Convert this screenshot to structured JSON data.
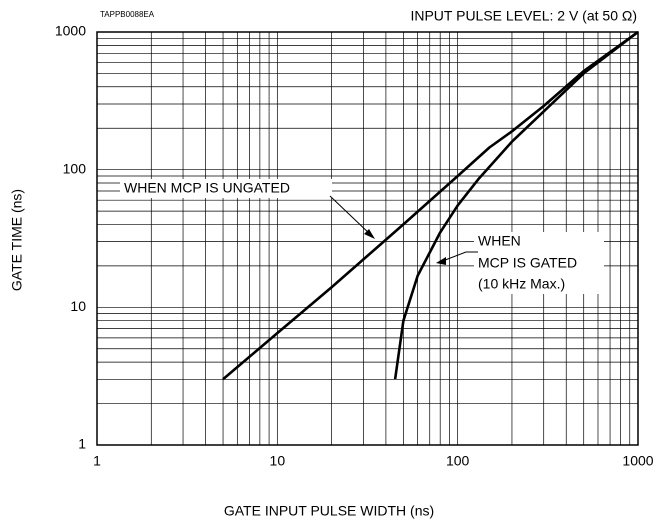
{
  "chart_data": {
    "type": "line",
    "title": "INPUT PULSE LEVEL: 2 V (at 50 Ω)",
    "code": "TAPPB0088EA",
    "xlabel": "GATE INPUT PULSE WIDTH (ns)",
    "ylabel": "GATE TIME (ns)",
    "xscale": "log",
    "yscale": "log",
    "xlim": [
      1,
      1000
    ],
    "ylim": [
      1,
      1000
    ],
    "xticks": [
      1,
      10,
      100,
      1000
    ],
    "yticks": [
      1,
      10,
      100,
      1000
    ],
    "minor_xticks": [
      2,
      3,
      4,
      5,
      6,
      7,
      8,
      9,
      20,
      30,
      40,
      50,
      60,
      70,
      80,
      90,
      200,
      300,
      400,
      500,
      600,
      700,
      800,
      900
    ],
    "minor_yticks": [
      2,
      3,
      4,
      5,
      6,
      7,
      8,
      9,
      20,
      30,
      40,
      50,
      60,
      70,
      80,
      90,
      200,
      300,
      400,
      500,
      600,
      700,
      800,
      900
    ],
    "grid": true,
    "series": [
      {
        "name": "WHEN MCP IS UNGATED",
        "color": "#000000",
        "x": [
          5,
          10,
          20,
          50,
          100,
          150,
          200,
          300,
          500,
          1000
        ],
        "values": [
          3,
          6.5,
          14,
          40,
          90,
          145,
          190,
          290,
          520,
          1000
        ]
      },
      {
        "name": "WHEN MCP IS GATED (10 kHz Max.)",
        "color": "#000000",
        "x": [
          45,
          50,
          60,
          70,
          80,
          100,
          130,
          200,
          500,
          1000
        ],
        "values": [
          3,
          8,
          17,
          25,
          35,
          55,
          85,
          160,
          500,
          1000
        ]
      }
    ],
    "annotations": [
      "WHEN MCP IS UNGATED",
      "WHEN",
      "MCP IS GATED",
      "(10 kHz Max.)"
    ]
  }
}
